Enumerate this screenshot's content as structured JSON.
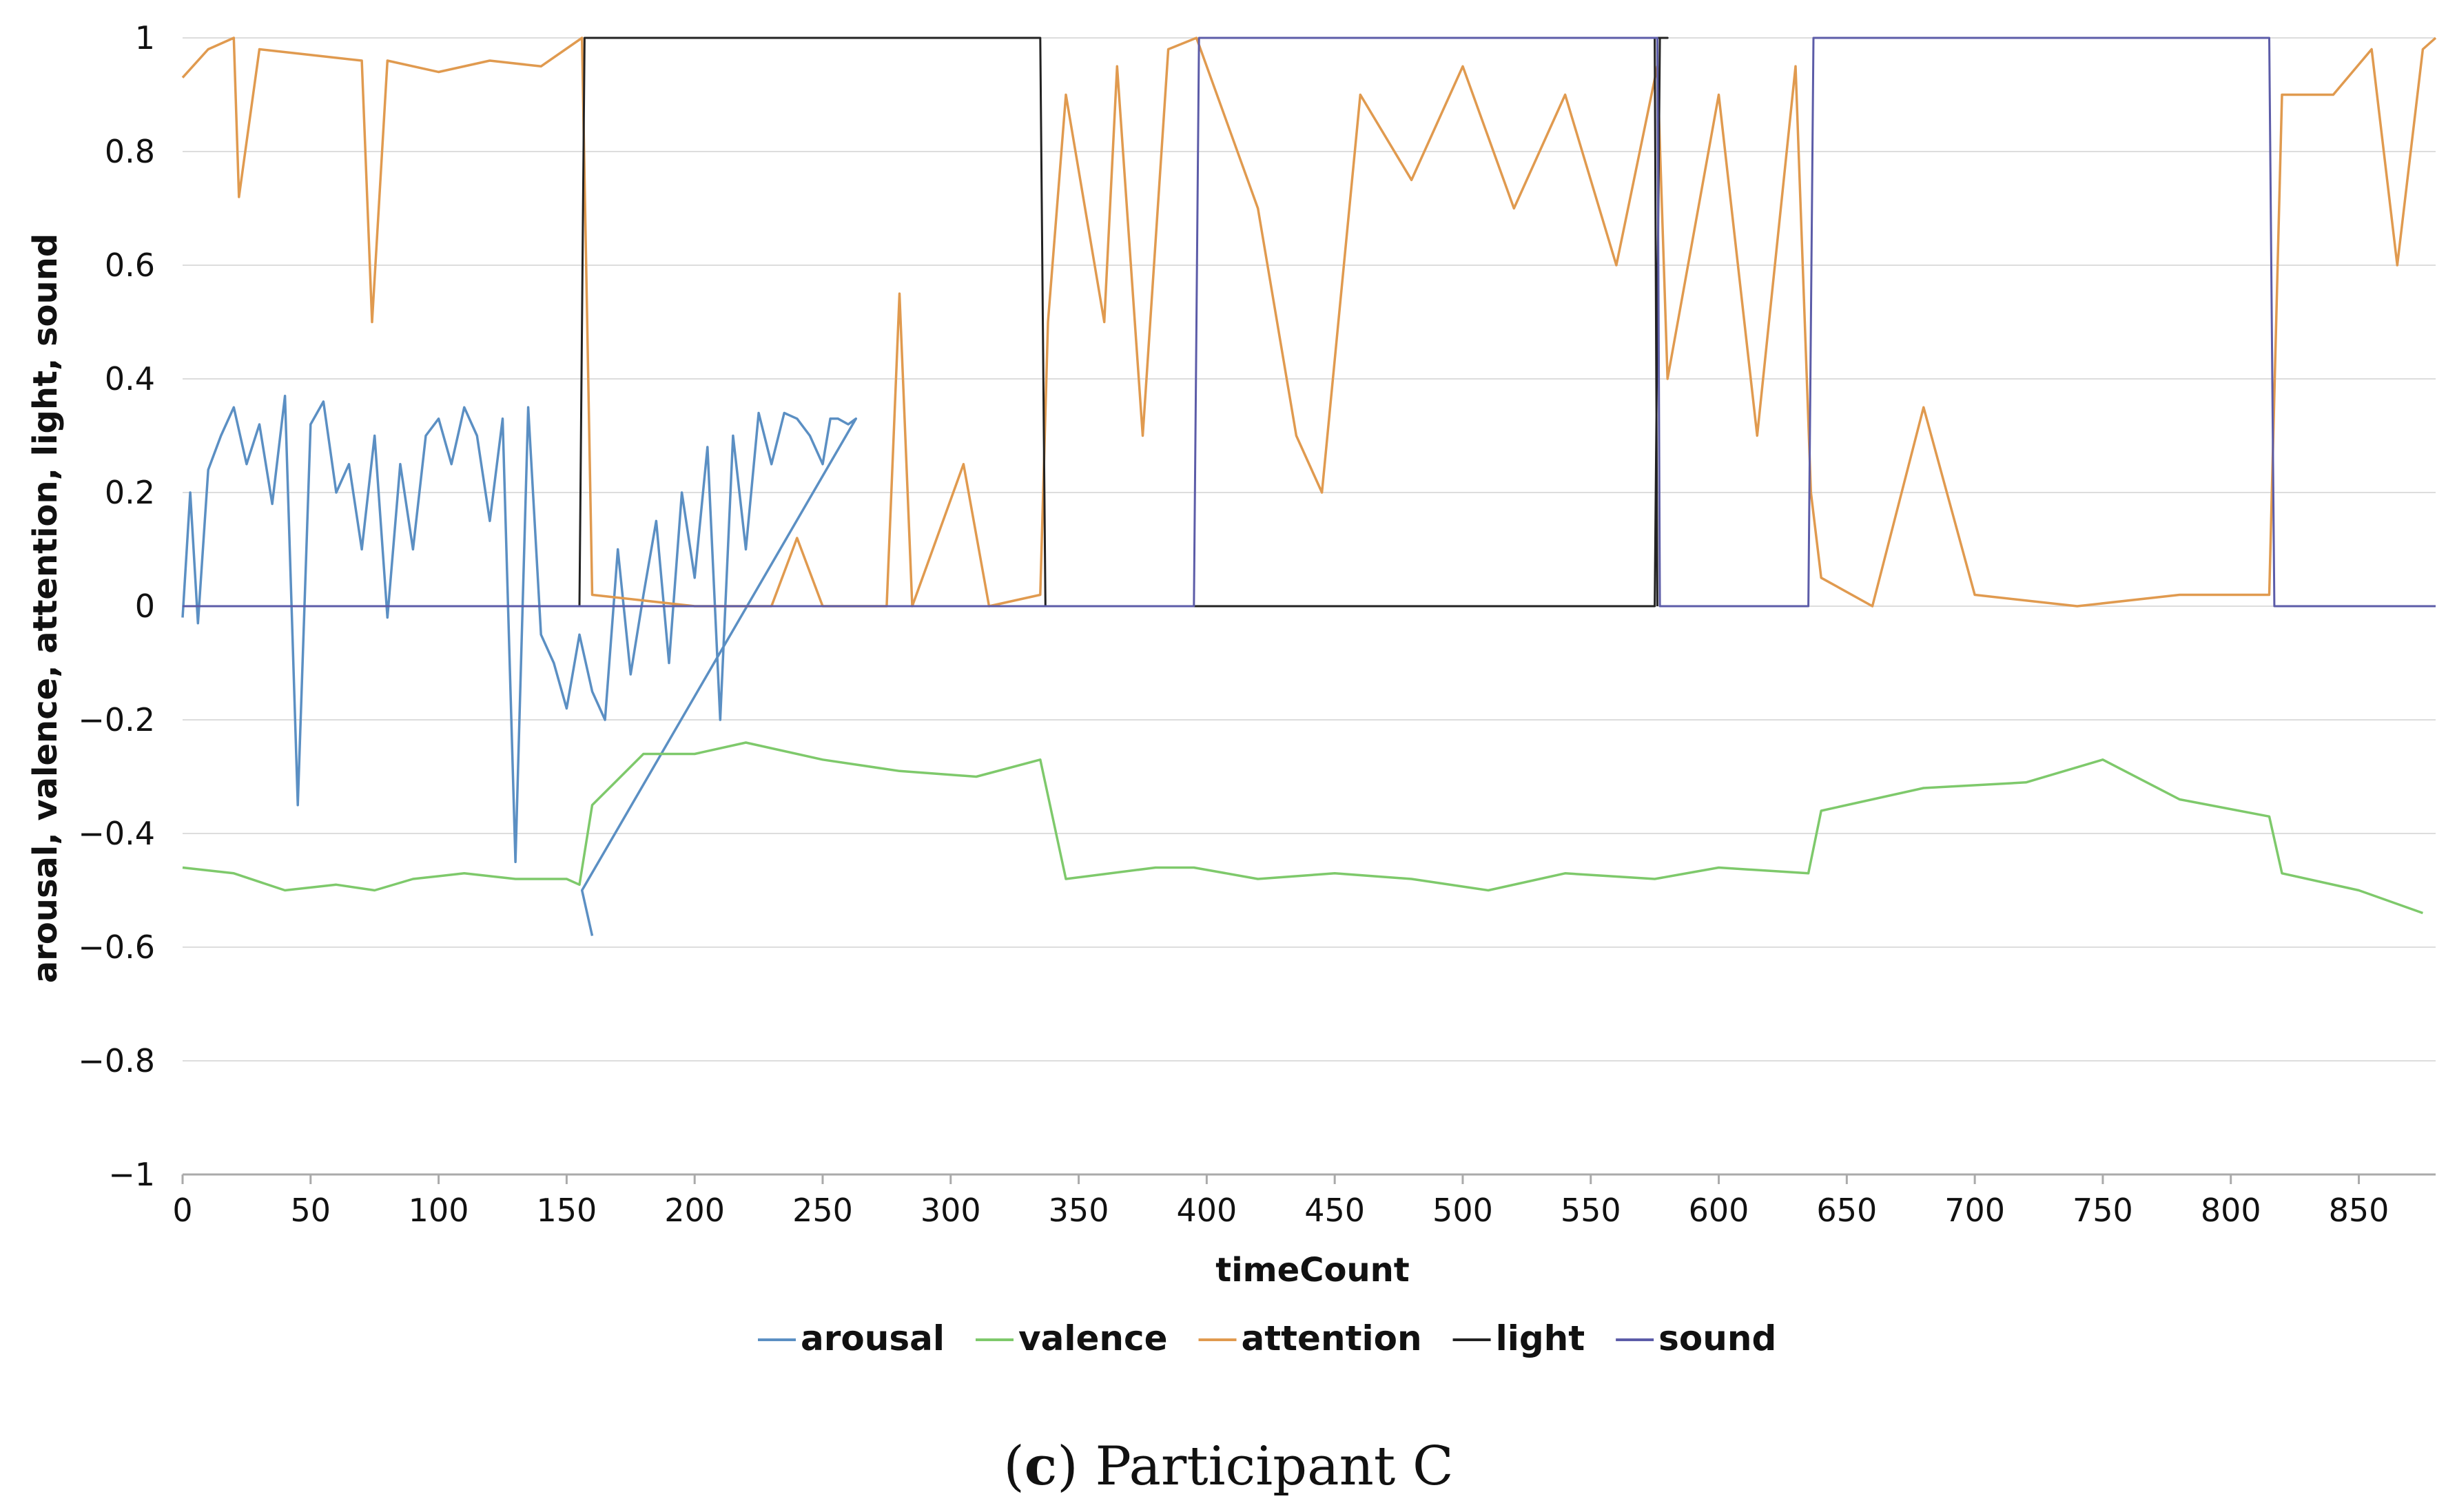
{
  "chart_data": {
    "type": "line",
    "title": "",
    "xlabel": "timeCount",
    "ylabel": "arousal, valence, attention, light, sound",
    "xlim": [
      0,
      880
    ],
    "ylim": [
      -1,
      1
    ],
    "x_ticks": [
      0,
      50,
      100,
      150,
      200,
      250,
      300,
      350,
      400,
      450,
      500,
      550,
      600,
      650,
      700,
      750,
      800,
      850
    ],
    "y_ticks": [
      -1,
      -0.8,
      -0.6,
      -0.4,
      -0.2,
      0,
      0.2,
      0.4,
      0.6,
      0.8,
      1
    ],
    "y_tick_labels": [
      "−1",
      "−0.8",
      "−0.6",
      "−0.4",
      "−0.2",
      "0",
      "0.2",
      "0.4",
      "0.6",
      "0.8",
      "1"
    ],
    "grid": true,
    "legend_position": "bottom-center",
    "series": [
      {
        "name": "arousal",
        "color": "#5b8fc3",
        "points": [
          [
            0,
            -0.02
          ],
          [
            3,
            0.2
          ],
          [
            6,
            -0.03
          ],
          [
            10,
            0.24
          ],
          [
            15,
            0.3
          ],
          [
            20,
            0.35
          ],
          [
            25,
            0.25
          ],
          [
            30,
            0.32
          ],
          [
            35,
            0.18
          ],
          [
            40,
            0.37
          ],
          [
            45,
            -0.35
          ],
          [
            50,
            0.32
          ],
          [
            55,
            0.36
          ],
          [
            60,
            0.2
          ],
          [
            65,
            0.25
          ],
          [
            70,
            0.1
          ],
          [
            75,
            0.3
          ],
          [
            80,
            -0.02
          ],
          [
            85,
            0.25
          ],
          [
            90,
            0.1
          ],
          [
            95,
            0.3
          ],
          [
            100,
            0.33
          ],
          [
            105,
            0.25
          ],
          [
            110,
            0.35
          ],
          [
            115,
            0.3
          ],
          [
            120,
            0.15
          ],
          [
            125,
            0.33
          ],
          [
            130,
            -0.45
          ],
          [
            135,
            0.35
          ],
          [
            140,
            -0.05
          ],
          [
            145,
            -0.1
          ],
          [
            150,
            -0.18
          ],
          [
            155,
            -0.05
          ],
          [
            160,
            -0.15
          ],
          [
            165,
            -0.2
          ],
          [
            170,
            0.1
          ],
          [
            175,
            -0.12
          ],
          [
            180,
            0.02
          ],
          [
            185,
            0.15
          ],
          [
            190,
            -0.1
          ],
          [
            195,
            0.2
          ],
          [
            200,
            0.05
          ],
          [
            205,
            0.28
          ],
          [
            210,
            -0.2
          ],
          [
            215,
            0.3
          ],
          [
            220,
            0.1
          ],
          [
            225,
            0.34
          ],
          [
            230,
            0.25
          ],
          [
            235,
            0.34
          ],
          [
            240,
            0.33
          ],
          [
            245,
            0.3
          ],
          [
            250,
            0.25
          ],
          [
            253,
            0.33
          ],
          [
            256,
            0.33
          ],
          [
            260,
            0.32
          ],
          [
            263,
            0.33
          ],
          [
            156,
            -0.5
          ],
          [
            160,
            -0.58
          ]
        ]
      },
      {
        "name": "valence",
        "color": "#7ec96b",
        "points": [
          [
            0,
            -0.46
          ],
          [
            20,
            -0.47
          ],
          [
            40,
            -0.5
          ],
          [
            60,
            -0.49
          ],
          [
            75,
            -0.5
          ],
          [
            90,
            -0.48
          ],
          [
            110,
            -0.47
          ],
          [
            130,
            -0.48
          ],
          [
            150,
            -0.48
          ],
          [
            155,
            -0.49
          ],
          [
            160,
            -0.35
          ],
          [
            180,
            -0.26
          ],
          [
            200,
            -0.26
          ],
          [
            220,
            -0.24
          ],
          [
            250,
            -0.27
          ],
          [
            280,
            -0.29
          ],
          [
            310,
            -0.3
          ],
          [
            335,
            -0.27
          ],
          [
            345,
            -0.48
          ],
          [
            380,
            -0.46
          ],
          [
            395,
            -0.46
          ],
          [
            420,
            -0.48
          ],
          [
            450,
            -0.47
          ],
          [
            480,
            -0.48
          ],
          [
            510,
            -0.5
          ],
          [
            540,
            -0.47
          ],
          [
            575,
            -0.48
          ],
          [
            600,
            -0.46
          ],
          [
            635,
            -0.47
          ],
          [
            640,
            -0.36
          ],
          [
            680,
            -0.32
          ],
          [
            720,
            -0.31
          ],
          [
            750,
            -0.27
          ],
          [
            780,
            -0.34
          ],
          [
            815,
            -0.37
          ],
          [
            820,
            -0.47
          ],
          [
            850,
            -0.5
          ],
          [
            875,
            -0.54
          ]
        ]
      },
      {
        "name": "attention",
        "color": "#e09a4f",
        "points": [
          [
            0,
            0.93
          ],
          [
            10,
            0.98
          ],
          [
            20,
            1.0
          ],
          [
            22,
            0.72
          ],
          [
            30,
            0.98
          ],
          [
            50,
            0.97
          ],
          [
            70,
            0.96
          ],
          [
            74,
            0.5
          ],
          [
            80,
            0.96
          ],
          [
            100,
            0.94
          ],
          [
            120,
            0.96
          ],
          [
            140,
            0.95
          ],
          [
            156,
            1.0
          ],
          [
            160,
            0.02
          ],
          [
            180,
            0.01
          ],
          [
            200,
            0.0
          ],
          [
            230,
            0.0
          ],
          [
            240,
            0.12
          ],
          [
            250,
            0.0
          ],
          [
            275,
            0.0
          ],
          [
            280,
            0.55
          ],
          [
            285,
            0.0
          ],
          [
            305,
            0.25
          ],
          [
            315,
            0.0
          ],
          [
            335,
            0.02
          ],
          [
            338,
            0.5
          ],
          [
            345,
            0.9
          ],
          [
            360,
            0.5
          ],
          [
            365,
            0.95
          ],
          [
            375,
            0.3
          ],
          [
            385,
            0.98
          ],
          [
            396,
            1.0
          ],
          [
            400,
            0.95
          ],
          [
            420,
            0.7
          ],
          [
            435,
            0.3
          ],
          [
            445,
            0.2
          ],
          [
            460,
            0.9
          ],
          [
            480,
            0.75
          ],
          [
            500,
            0.95
          ],
          [
            520,
            0.7
          ],
          [
            540,
            0.9
          ],
          [
            560,
            0.6
          ],
          [
            576,
            0.95
          ],
          [
            580,
            0.4
          ],
          [
            600,
            0.9
          ],
          [
            615,
            0.3
          ],
          [
            630,
            0.95
          ],
          [
            636,
            0.2
          ],
          [
            640,
            0.05
          ],
          [
            660,
            0.0
          ],
          [
            680,
            0.35
          ],
          [
            700,
            0.02
          ],
          [
            740,
            0.0
          ],
          [
            780,
            0.02
          ],
          [
            815,
            0.02
          ],
          [
            820,
            0.9
          ],
          [
            840,
            0.9
          ],
          [
            855,
            0.98
          ],
          [
            865,
            0.6
          ],
          [
            875,
            0.98
          ],
          [
            880,
            1.0
          ]
        ]
      },
      {
        "name": "light",
        "color": "#222222",
        "points": [
          [
            0,
            0
          ],
          [
            155,
            0
          ],
          [
            157,
            1
          ],
          [
            335,
            1
          ],
          [
            337,
            0
          ],
          [
            575,
            0
          ],
          [
            577,
            1
          ],
          [
            580,
            1
          ],
          [
            575,
            1
          ],
          [
            576,
            0
          ]
        ]
      },
      {
        "name": "sound",
        "color": "#5c5ca8",
        "points": [
          [
            0,
            0
          ],
          [
            395,
            0
          ],
          [
            397,
            1
          ],
          [
            576,
            1
          ],
          [
            577,
            0
          ],
          [
            635,
            0
          ],
          [
            637,
            1
          ],
          [
            815,
            1
          ],
          [
            817,
            0
          ],
          [
            880,
            0
          ]
        ]
      }
    ]
  },
  "legend": {
    "items": [
      {
        "label": "arousal",
        "color": "#5b8fc3"
      },
      {
        "label": "valence",
        "color": "#7ec96b"
      },
      {
        "label": "attention",
        "color": "#e09a4f"
      },
      {
        "label": "light",
        "color": "#222222"
      },
      {
        "label": "sound",
        "color": "#5c5ca8"
      }
    ]
  },
  "caption": {
    "open_paren": "(",
    "letter": "c",
    "rest": ") Participant C"
  }
}
